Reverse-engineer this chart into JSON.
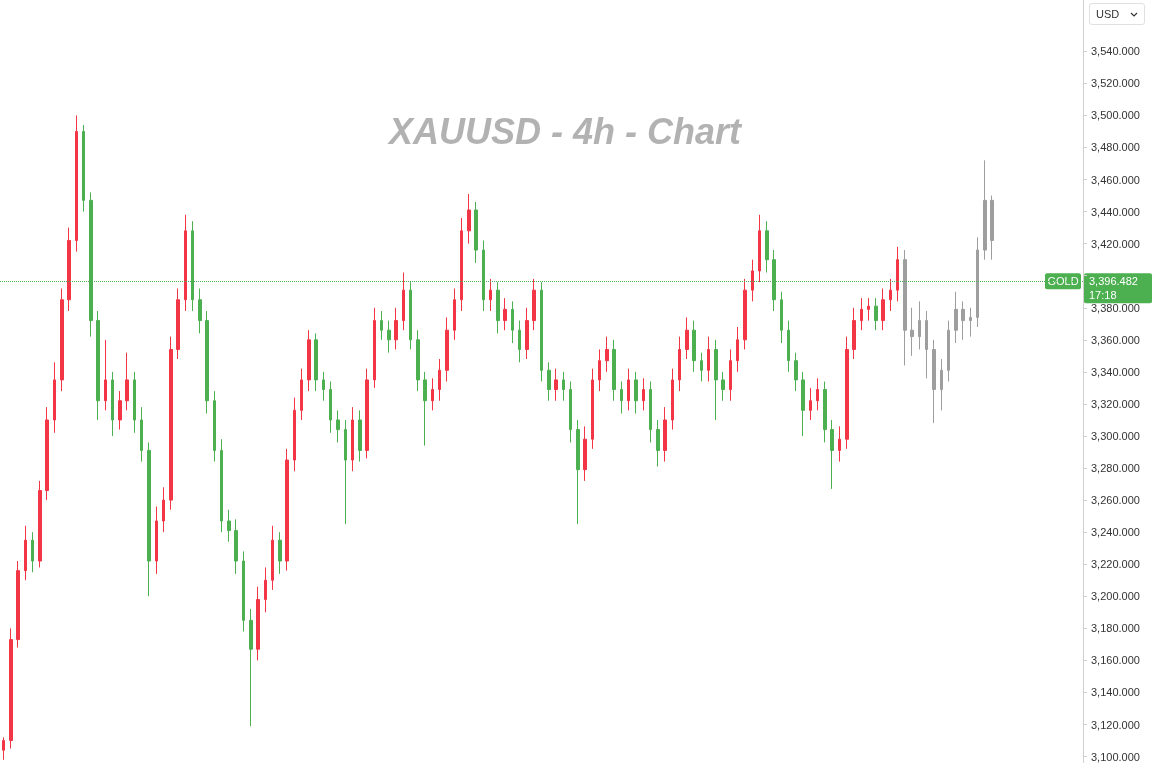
{
  "chart_data": {
    "type": "candlestick",
    "title": "XAUUSD - 4h - Chart",
    "categories": [
      null,
      null,
      null,
      null,
      null,
      null,
      null,
      null,
      null,
      null,
      null,
      null,
      null,
      null,
      null,
      null,
      null,
      null,
      null,
      null,
      null,
      null,
      null,
      null,
      null,
      null,
      null,
      null,
      null,
      null,
      null,
      null,
      null,
      null,
      null,
      null,
      null,
      null,
      null,
      null,
      null,
      null,
      null,
      null,
      null,
      null,
      null,
      null,
      null,
      null,
      null,
      null,
      null,
      null,
      null,
      null,
      null,
      null,
      null,
      null,
      null,
      null,
      null,
      null,
      null,
      null,
      null,
      null,
      null,
      null,
      null,
      null,
      null,
      null,
      null,
      null,
      null,
      null,
      null,
      null,
      null,
      null,
      null,
      null,
      null,
      null,
      null,
      null,
      null,
      null,
      null,
      null,
      null,
      null,
      null,
      null,
      null,
      null,
      null,
      null,
      null,
      null,
      null,
      null,
      null,
      null,
      null,
      null,
      null,
      null,
      null,
      null,
      null,
      null,
      null,
      null,
      null,
      null,
      null,
      null,
      null,
      null,
      null,
      null,
      null,
      null,
      null,
      null,
      null,
      null,
      null,
      null,
      null,
      null,
      null,
      null,
      null,
      null,
      null,
      null,
      null,
      null,
      null,
      null,
      null,
      null,
      null,
      null,
      null
    ],
    "ohlc": [
      [
        3104,
        3112,
        3098,
        3110
      ],
      [
        3110,
        3180,
        3105,
        3173
      ],
      [
        3173,
        3222,
        3168,
        3216
      ],
      [
        3216,
        3244,
        3210,
        3235
      ],
      [
        3235,
        3240,
        3215,
        3222
      ],
      [
        3222,
        3272,
        3218,
        3266
      ],
      [
        3266,
        3318,
        3260,
        3310
      ],
      [
        3310,
        3346,
        3302,
        3335
      ],
      [
        3335,
        3392,
        3328,
        3385
      ],
      [
        3385,
        3430,
        3378,
        3422
      ],
      [
        3422,
        3500,
        3415,
        3490
      ],
      [
        3490,
        3494,
        3440,
        3447
      ],
      [
        3447,
        3452,
        3362,
        3372
      ],
      [
        3372,
        3378,
        3310,
        3322
      ],
      [
        3322,
        3360,
        3316,
        3335
      ],
      [
        3335,
        3340,
        3300,
        3310
      ],
      [
        3310,
        3328,
        3304,
        3322
      ],
      [
        3322,
        3352,
        3316,
        3335
      ],
      [
        3335,
        3340,
        3302,
        3310
      ],
      [
        3310,
        3318,
        3284,
        3291
      ],
      [
        3291,
        3296,
        3200,
        3222
      ],
      [
        3222,
        3256,
        3214,
        3247
      ],
      [
        3247,
        3268,
        3240,
        3260
      ],
      [
        3260,
        3362,
        3254,
        3354
      ],
      [
        3354,
        3392,
        3348,
        3385
      ],
      [
        3385,
        3438,
        3378,
        3428
      ],
      [
        3428,
        3434,
        3378,
        3385
      ],
      [
        3385,
        3392,
        3364,
        3372
      ],
      [
        3372,
        3378,
        3314,
        3322
      ],
      [
        3322,
        3328,
        3284,
        3291
      ],
      [
        3291,
        3298,
        3240,
        3247
      ],
      [
        3247,
        3254,
        3234,
        3241
      ],
      [
        3241,
        3248,
        3214,
        3222
      ],
      [
        3222,
        3228,
        3178,
        3185
      ],
      [
        3185,
        3192,
        3119,
        3167
      ],
      [
        3167,
        3206,
        3160,
        3198
      ],
      [
        3198,
        3218,
        3190,
        3210
      ],
      [
        3210,
        3244,
        3204,
        3235
      ],
      [
        3235,
        3240,
        3214,
        3222
      ],
      [
        3222,
        3292,
        3216,
        3285
      ],
      [
        3285,
        3324,
        3278,
        3316
      ],
      [
        3316,
        3342,
        3310,
        3335
      ],
      [
        3335,
        3366,
        3328,
        3360
      ],
      [
        3360,
        3364,
        3328,
        3335
      ],
      [
        3335,
        3340,
        3322,
        3329
      ],
      [
        3329,
        3334,
        3302,
        3310
      ],
      [
        3310,
        3316,
        3296,
        3304
      ],
      [
        3304,
        3310,
        3245,
        3285
      ],
      [
        3285,
        3318,
        3278,
        3310
      ],
      [
        3310,
        3316,
        3284,
        3291
      ],
      [
        3291,
        3342,
        3286,
        3335
      ],
      [
        3335,
        3380,
        3330,
        3372
      ],
      [
        3372,
        3378,
        3360,
        3366
      ],
      [
        3366,
        3372,
        3352,
        3360
      ],
      [
        3360,
        3380,
        3354,
        3372
      ],
      [
        3372,
        3402,
        3366,
        3391
      ],
      [
        3391,
        3396,
        3354,
        3360
      ],
      [
        3360,
        3366,
        3328,
        3335
      ],
      [
        3335,
        3340,
        3294,
        3322
      ],
      [
        3322,
        3336,
        3316,
        3329
      ],
      [
        3329,
        3348,
        3322,
        3341
      ],
      [
        3341,
        3374,
        3334,
        3366
      ],
      [
        3366,
        3392,
        3360,
        3385
      ],
      [
        3385,
        3436,
        3378,
        3428
      ],
      [
        3428,
        3451,
        3420,
        3441
      ],
      [
        3441,
        3446,
        3408,
        3416
      ],
      [
        3416,
        3422,
        3378,
        3385
      ],
      [
        3385,
        3398,
        3378,
        3391
      ],
      [
        3391,
        3396,
        3364,
        3372
      ],
      [
        3372,
        3386,
        3366,
        3379
      ],
      [
        3379,
        3384,
        3358,
        3366
      ],
      [
        3366,
        3372,
        3346,
        3354
      ],
      [
        3354,
        3380,
        3348,
        3372
      ],
      [
        3372,
        3398,
        3366,
        3391
      ],
      [
        3391,
        3396,
        3334,
        3341
      ],
      [
        3341,
        3346,
        3322,
        3329
      ],
      [
        3329,
        3342,
        3322,
        3335
      ],
      [
        3335,
        3340,
        3322,
        3329
      ],
      [
        3329,
        3334,
        3296,
        3304
      ],
      [
        3304,
        3310,
        3245,
        3279
      ],
      [
        3279,
        3306,
        3272,
        3298
      ],
      [
        3298,
        3342,
        3292,
        3335
      ],
      [
        3335,
        3354,
        3328,
        3347
      ],
      [
        3347,
        3362,
        3340,
        3354
      ],
      [
        3354,
        3360,
        3322,
        3329
      ],
      [
        3329,
        3334,
        3314,
        3322
      ],
      [
        3322,
        3342,
        3316,
        3335
      ],
      [
        3335,
        3340,
        3314,
        3322
      ],
      [
        3322,
        3336,
        3316,
        3329
      ],
      [
        3329,
        3334,
        3296,
        3304
      ],
      [
        3304,
        3310,
        3281,
        3291
      ],
      [
        3291,
        3318,
        3284,
        3310
      ],
      [
        3310,
        3342,
        3304,
        3335
      ],
      [
        3335,
        3362,
        3328,
        3354
      ],
      [
        3354,
        3374,
        3348,
        3366
      ],
      [
        3366,
        3372,
        3340,
        3347
      ],
      [
        3347,
        3352,
        3334,
        3341
      ],
      [
        3341,
        3362,
        3334,
        3354
      ],
      [
        3354,
        3360,
        3310,
        3335
      ],
      [
        3335,
        3340,
        3322,
        3329
      ],
      [
        3329,
        3354,
        3322,
        3347
      ],
      [
        3347,
        3368,
        3340,
        3360
      ],
      [
        3360,
        3398,
        3354,
        3391
      ],
      [
        3391,
        3410,
        3384,
        3403
      ],
      [
        3403,
        3438,
        3396,
        3428
      ],
      [
        3428,
        3434,
        3402,
        3410
      ],
      [
        3410,
        3416,
        3378,
        3385
      ],
      [
        3385,
        3390,
        3358,
        3366
      ],
      [
        3366,
        3372,
        3340,
        3347
      ],
      [
        3347,
        3352,
        3328,
        3335
      ],
      [
        3335,
        3340,
        3300,
        3316
      ],
      [
        3316,
        3330,
        3310,
        3322
      ],
      [
        3322,
        3336,
        3316,
        3329
      ],
      [
        3329,
        3334,
        3296,
        3304
      ],
      [
        3304,
        3310,
        3267,
        3291
      ],
      [
        3291,
        3306,
        3284,
        3298
      ],
      [
        3298,
        3362,
        3292,
        3354
      ],
      [
        3354,
        3380,
        3348,
        3372
      ],
      [
        3372,
        3386,
        3366,
        3379
      ],
      [
        3379,
        3386,
        3372,
        3381
      ],
      [
        3381,
        3386,
        3366,
        3372
      ],
      [
        3372,
        3392,
        3366,
        3385
      ],
      [
        3385,
        3398,
        3378,
        3391
      ],
      [
        3391,
        3418,
        3384,
        3410
      ],
      [
        3410,
        3416,
        3344,
        3366
      ],
      [
        3366,
        3380,
        3350,
        3362
      ],
      [
        3362,
        3384,
        3354,
        3372
      ],
      [
        3372,
        3378,
        3336,
        3354
      ],
      [
        3354,
        3360,
        3308,
        3329
      ],
      [
        3329,
        3348,
        3316,
        3341
      ],
      [
        3341,
        3372,
        3334,
        3366
      ],
      [
        3366,
        3390,
        3358,
        3379
      ],
      [
        3379,
        3384,
        3360,
        3372
      ],
      [
        3372,
        3380,
        3362,
        3374
      ],
      [
        3374,
        3424,
        3368,
        3416
      ],
      [
        3416,
        3472,
        3410,
        3447
      ],
      [
        3447,
        3450,
        3410,
        3422
      ],
      null,
      null,
      null,
      null,
      null,
      null,
      null,
      null,
      null,
      null,
      null,
      null
    ],
    "colors": [
      "#f23645",
      "#f23645",
      "#f23645",
      "#f23645",
      "#4caf50",
      "#f23645",
      "#f23645",
      "#f23645",
      "#f23645",
      "#f23645",
      "#f23645",
      "#4caf50",
      "#4caf50",
      "#4caf50",
      "#f23645",
      "#4caf50",
      "#f23645",
      "#f23645",
      "#4caf50",
      "#4caf50",
      "#4caf50",
      "#f23645",
      "#f23645",
      "#f23645",
      "#f23645",
      "#f23645",
      "#4caf50",
      "#4caf50",
      "#4caf50",
      "#4caf50",
      "#4caf50",
      "#4caf50",
      "#4caf50",
      "#4caf50",
      "#4caf50",
      "#f23645",
      "#f23645",
      "#f23645",
      "#4caf50",
      "#f23645",
      "#f23645",
      "#f23645",
      "#f23645",
      "#4caf50",
      "#4caf50",
      "#4caf50",
      "#4caf50",
      "#4caf50",
      "#f23645",
      "#4caf50",
      "#f23645",
      "#f23645",
      "#4caf50",
      "#4caf50",
      "#f23645",
      "#f23645",
      "#4caf50",
      "#4caf50",
      "#4caf50",
      "#f23645",
      "#f23645",
      "#f23645",
      "#f23645",
      "#f23645",
      "#f23645",
      "#4caf50",
      "#4caf50",
      "#f23645",
      "#4caf50",
      "#f23645",
      "#4caf50",
      "#4caf50",
      "#f23645",
      "#f23645",
      "#4caf50",
      "#4caf50",
      "#f23645",
      "#4caf50",
      "#4caf50",
      "#4caf50",
      "#f23645",
      "#f23645",
      "#f23645",
      "#f23645",
      "#4caf50",
      "#4caf50",
      "#f23645",
      "#4caf50",
      "#f23645",
      "#4caf50",
      "#4caf50",
      "#f23645",
      "#f23645",
      "#f23645",
      "#f23645",
      "#4caf50",
      "#4caf50",
      "#f23645",
      "#4caf50",
      "#4caf50",
      "#f23645",
      "#f23645",
      "#f23645",
      "#f23645",
      "#f23645",
      "#4caf50",
      "#4caf50",
      "#4caf50",
      "#4caf50",
      "#4caf50",
      "#4caf50",
      "#f23645",
      "#f23645",
      "#4caf50",
      "#4caf50",
      "#f23645",
      "#f23645",
      "#f23645",
      "#f23645",
      "#f23645",
      "#4caf50",
      "#f23645",
      "#f23645",
      "#f23645",
      "#9e9e9e",
      "#9e9e9e",
      "#9e9e9e",
      "#9e9e9e",
      "#9e9e9e",
      "#9e9e9e",
      "#9e9e9e",
      "#9e9e9e",
      "#9e9e9e",
      "#9e9e9e",
      "#9e9e9e",
      "#9e9e9e",
      "#9e9e9e",
      null,
      null,
      null,
      null,
      null,
      null,
      null,
      null,
      null,
      null,
      null,
      null
    ],
    "ylim": [
      3096,
      3572
    ],
    "yticks": [
      {
        "value": 3100,
        "label": "3,100.000"
      },
      {
        "value": 3120,
        "label": "3,120.000"
      },
      {
        "value": 3140,
        "label": "3,140.000"
      },
      {
        "value": 3160,
        "label": "3,160.000"
      },
      {
        "value": 3180,
        "label": "3,180.000"
      },
      {
        "value": 3200,
        "label": "3,200.000"
      },
      {
        "value": 3220,
        "label": "3,220.000"
      },
      {
        "value": 3240,
        "label": "3,240.000"
      },
      {
        "value": 3260,
        "label": "3,260.000"
      },
      {
        "value": 3280,
        "label": "3,280.000"
      },
      {
        "value": 3300,
        "label": "3,300.000"
      },
      {
        "value": 3320,
        "label": "3,320.000"
      },
      {
        "value": 3340,
        "label": "3,340.000"
      },
      {
        "value": 3360,
        "label": "3,360.000"
      },
      {
        "value": 3380,
        "label": "3,380.000"
      },
      {
        "value": 3400,
        "label": null
      },
      {
        "value": 3420,
        "label": "3,420.000"
      },
      {
        "value": 3440,
        "label": "3,440.000"
      },
      {
        "value": 3460,
        "label": "3,460.000"
      },
      {
        "value": 3480,
        "label": "3,480.000"
      },
      {
        "value": 3500,
        "label": "3,500.000"
      },
      {
        "value": 3520,
        "label": "3,520.000"
      },
      {
        "value": 3540,
        "label": "3,540.000"
      }
    ],
    "tick_labels": "y",
    "grid": false,
    "ref_lines": [
      {
        "axis": "y",
        "value": 3396.482,
        "label": "GOLD",
        "color": "#4caf50",
        "line_style": "dotted"
      }
    ],
    "annotations": [
      "3,396.482",
      "17:18",
      "USD"
    ]
  }
}
